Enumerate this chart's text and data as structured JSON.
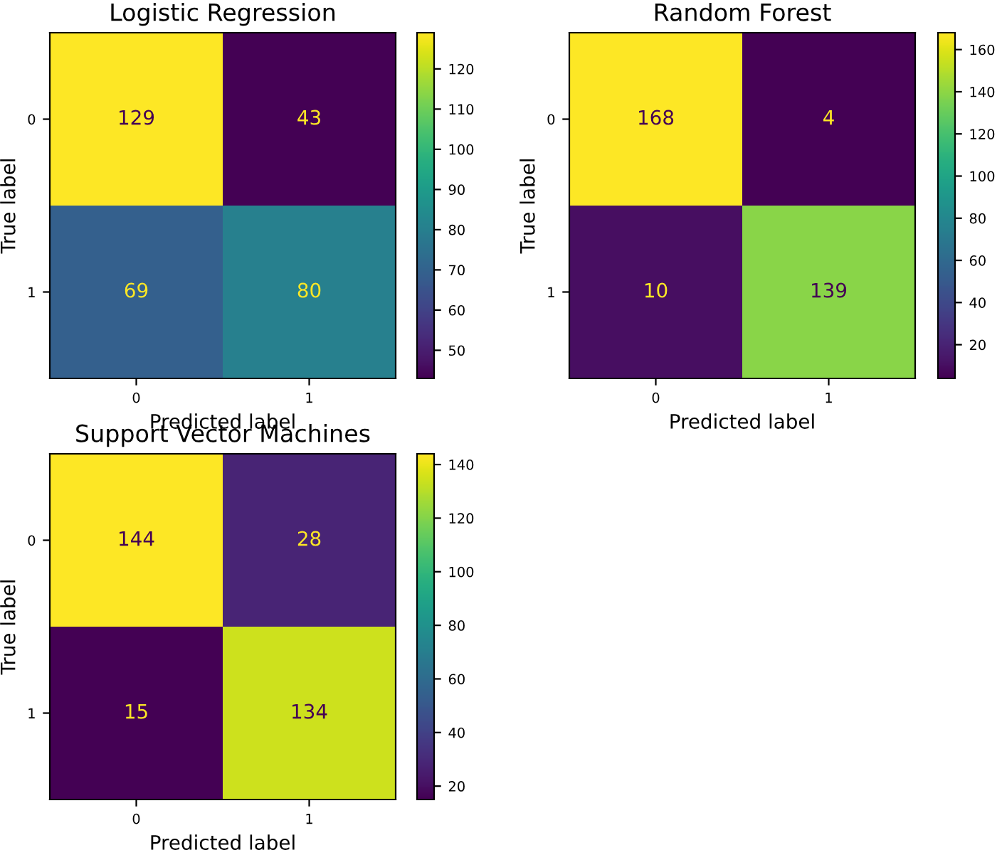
{
  "chart_data": [
    {
      "type": "heatmap",
      "title": "Logistic Regression",
      "xlabel": "Predicted label",
      "ylabel": "True label",
      "categories": [
        "0",
        "1"
      ],
      "y_categories": [
        "0",
        "1"
      ],
      "cells": [
        [
          129,
          43
        ],
        [
          69,
          80
        ]
      ],
      "clim": [
        43,
        129
      ],
      "cticks": [
        50,
        60,
        70,
        80,
        90,
        100,
        110,
        120
      ],
      "data_labels": true
    },
    {
      "type": "heatmap",
      "title": "Random Forest",
      "xlabel": "Predicted label",
      "ylabel": "True label",
      "categories": [
        "0",
        "1"
      ],
      "y_categories": [
        "0",
        "1"
      ],
      "cells": [
        [
          168,
          4
        ],
        [
          10,
          139
        ]
      ],
      "clim": [
        4,
        168
      ],
      "cticks": [
        20,
        40,
        60,
        80,
        100,
        120,
        140,
        160
      ],
      "data_labels": true
    },
    {
      "type": "heatmap",
      "title": "Support Vector Machines",
      "xlabel": "Predicted label",
      "ylabel": "True label",
      "categories": [
        "0",
        "1"
      ],
      "y_categories": [
        "0",
        "1"
      ],
      "cells": [
        [
          144,
          28
        ],
        [
          15,
          134
        ]
      ],
      "clim": [
        15,
        144
      ],
      "cticks": [
        20,
        40,
        60,
        80,
        100,
        120,
        140
      ],
      "data_labels": true
    }
  ]
}
